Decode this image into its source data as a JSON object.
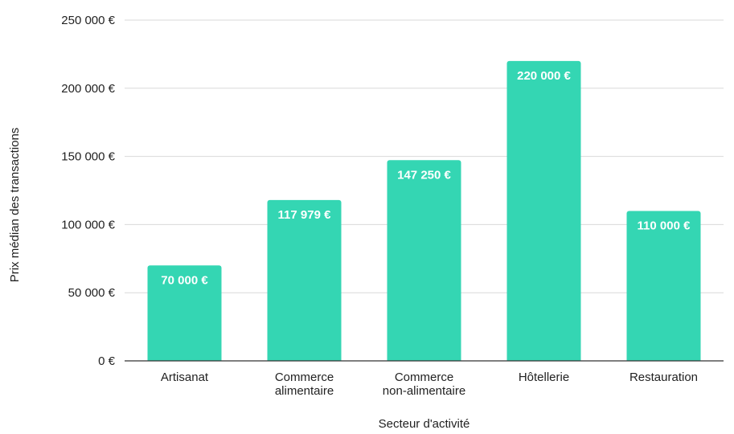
{
  "chart_data": {
    "type": "bar",
    "title": "",
    "xlabel": "Secteur d'activité",
    "ylabel": "Prix médian des transactions",
    "categories": [
      [
        "Artisanat"
      ],
      [
        "Commerce",
        "alimentaire"
      ],
      [
        "Commerce",
        "non-alimentaire"
      ],
      [
        "Hôtellerie"
      ],
      [
        "Restauration"
      ]
    ],
    "values": [
      70000,
      117979,
      147250,
      220000,
      110000
    ],
    "value_labels": [
      "70 000 €",
      "117 979 €",
      "147 250 €",
      "220 000 €",
      "110 000 €"
    ],
    "ylim": [
      0,
      250000
    ],
    "yticks": [
      0,
      50000,
      100000,
      150000,
      200000,
      250000
    ],
    "ytick_labels": [
      "0 €",
      "50 000 €",
      "100 000 €",
      "150 000 €",
      "200 000 €",
      "250 000 €"
    ],
    "grid": true,
    "legend": "none",
    "bar_color": "#34d6b3"
  }
}
